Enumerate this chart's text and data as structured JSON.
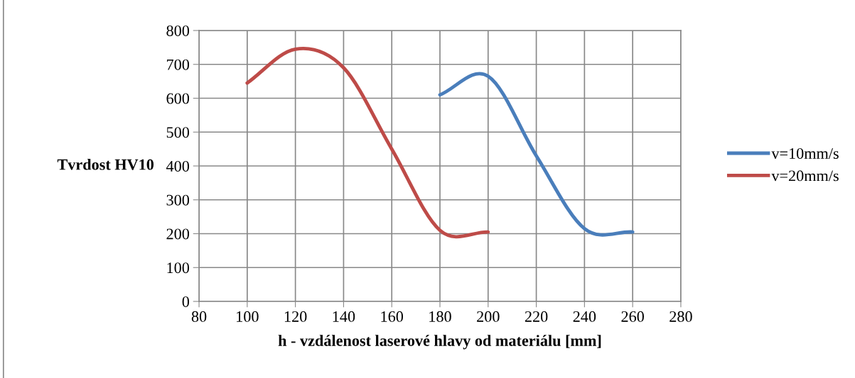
{
  "chart_data": {
    "type": "line",
    "xlabel": "h - vzdálenost laserové hlavy od materiálu [mm]",
    "ylabel": "Tvrdost HV10",
    "series": [
      {
        "name": "v=10mm/s",
        "color": "#4a7ebb",
        "x": [
          180,
          200,
          220,
          240,
          260
        ],
        "values": [
          610,
          665,
          430,
          215,
          205
        ]
      },
      {
        "name": "v=20mm/s",
        "color": "#be4b48",
        "x": [
          100,
          120,
          140,
          160,
          180,
          200
        ],
        "values": [
          645,
          745,
          690,
          450,
          210,
          205
        ]
      }
    ],
    "xlim": [
      80,
      280
    ],
    "xticks": [
      80,
      100,
      120,
      140,
      160,
      180,
      200,
      220,
      240,
      260,
      280
    ],
    "ylim": [
      0,
      800
    ],
    "yticks": [
      0,
      100,
      200,
      300,
      400,
      500,
      600,
      700,
      800
    ],
    "grid": true,
    "legend": "right",
    "marker": "none",
    "line_style": "solid"
  }
}
